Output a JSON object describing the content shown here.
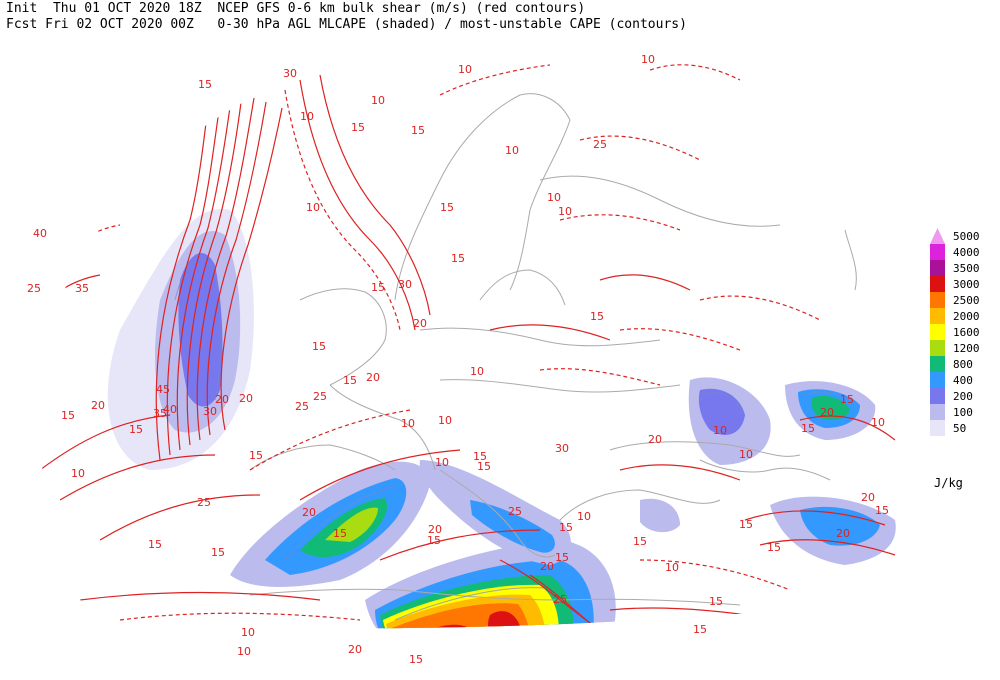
{
  "header": {
    "line1": "Init  Thu 01 OCT 2020 18Z  NCEP GFS 0-6 km bulk shear (m/s) (red contours)",
    "line2": "Fcst Fri 02 OCT 2020 00Z   0-30 hPa AGL MLCAPE (shaded) / most-unstable CAPE (contours)"
  },
  "legend": {
    "unit": "J/kg",
    "levels": [
      {
        "label": "5000",
        "color": "#ee99ee"
      },
      {
        "label": "4000",
        "color": "#dd22dd"
      },
      {
        "label": "3500",
        "color": "#aa1199"
      },
      {
        "label": "3000",
        "color": "#dd1111"
      },
      {
        "label": "2500",
        "color": "#ff7700"
      },
      {
        "label": "2000",
        "color": "#ffbb00"
      },
      {
        "label": "1600",
        "color": "#ffff00"
      },
      {
        "label": "1200",
        "color": "#aadd11"
      },
      {
        "label": "800",
        "color": "#11bb77"
      },
      {
        "label": "400",
        "color": "#3399ff"
      },
      {
        "label": "200",
        "color": "#7777ee"
      },
      {
        "label": "100",
        "color": "#bbbbee"
      },
      {
        "label": "50",
        "color": "#e6e6f8"
      }
    ]
  },
  "contour_labels": [
    "15",
    "30",
    "10",
    "10",
    "10",
    "15",
    "15",
    "10",
    "10",
    "25",
    "10",
    "10",
    "15",
    "10",
    "40",
    "25",
    "35",
    "30",
    "15",
    "15",
    "20",
    "15",
    "15",
    "20",
    "45",
    "35",
    "40",
    "30",
    "20",
    "20",
    "25",
    "25",
    "10",
    "10",
    "20",
    "15",
    "15",
    "10",
    "15",
    "10",
    "15",
    "10",
    "15",
    "25",
    "15",
    "20",
    "15",
    "15",
    "20",
    "15",
    "30",
    "15",
    "25",
    "10",
    "15",
    "15",
    "20",
    "10",
    "15",
    "15",
    "25",
    "20",
    "15",
    "10",
    "10",
    "10",
    "20",
    "15",
    "15",
    "20",
    "10",
    "15",
    "15",
    "15",
    "20",
    "10",
    "20",
    "15"
  ],
  "colors": {
    "shear_contour": "#dd2222",
    "coastline": "#aaaaaa",
    "cape_contour": "#7788cc"
  }
}
